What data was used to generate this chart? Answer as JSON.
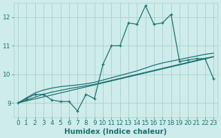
{
  "xlabel": "Humidex (Indice chaleur)",
  "background_color": "#ceecea",
  "grid_color": "#aacfcc",
  "line_color": "#1a7070",
  "x_values": [
    0,
    1,
    2,
    3,
    4,
    5,
    6,
    7,
    8,
    9,
    10,
    11,
    12,
    13,
    14,
    15,
    16,
    17,
    18,
    19,
    20,
    21,
    22,
    23
  ],
  "series_main": [
    9.0,
    9.15,
    9.3,
    9.3,
    9.1,
    9.05,
    9.05,
    8.72,
    9.3,
    9.15,
    10.35,
    11.0,
    11.0,
    11.8,
    11.75,
    12.4,
    11.75,
    11.8,
    12.1,
    10.45,
    10.5,
    10.55,
    10.55,
    9.85
  ],
  "series_lin1": [
    9.0,
    9.07,
    9.14,
    9.21,
    9.28,
    9.35,
    9.42,
    9.49,
    9.56,
    9.63,
    9.7,
    9.77,
    9.84,
    9.91,
    9.98,
    10.05,
    10.12,
    10.19,
    10.26,
    10.33,
    10.4,
    10.47,
    10.54,
    10.61
  ],
  "series_lin2": [
    9.0,
    9.1,
    9.2,
    9.3,
    9.38,
    9.44,
    9.5,
    9.55,
    9.6,
    9.65,
    9.72,
    9.79,
    9.86,
    9.93,
    10.0,
    10.07,
    10.14,
    10.21,
    10.28,
    10.35,
    10.42,
    10.49,
    10.56,
    10.62
  ],
  "series_lin3": [
    9.0,
    9.18,
    9.35,
    9.45,
    9.52,
    9.57,
    9.6,
    9.63,
    9.67,
    9.72,
    9.8,
    9.88,
    9.96,
    10.04,
    10.12,
    10.22,
    10.32,
    10.4,
    10.46,
    10.52,
    10.58,
    10.64,
    10.7,
    10.74
  ],
  "ylim": [
    8.5,
    12.5
  ],
  "xlim": [
    -0.5,
    23.5
  ],
  "yticks": [
    9,
    10,
    11,
    12
  ],
  "xticks": [
    0,
    1,
    2,
    3,
    4,
    5,
    6,
    7,
    8,
    9,
    10,
    11,
    12,
    13,
    14,
    15,
    16,
    17,
    18,
    19,
    20,
    21,
    22,
    23
  ],
  "tick_fontsize": 6.5,
  "label_fontsize": 7.5
}
